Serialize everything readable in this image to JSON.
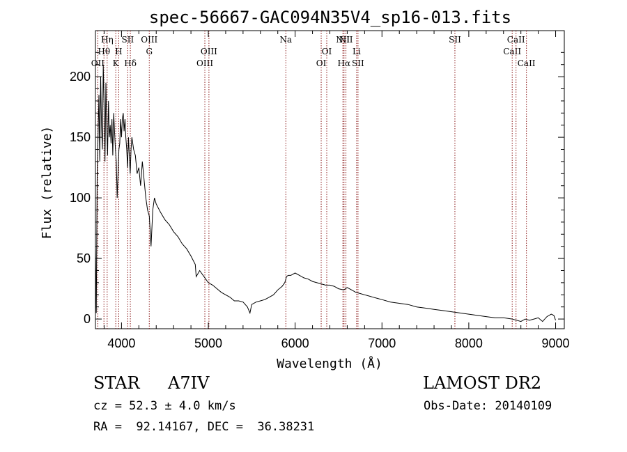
{
  "chart_data": {
    "type": "line",
    "title": "spec-56667-GAC094N35V4_sp16-013.fits",
    "xlabel": "Wavelength (Å)",
    "ylabel": "Flux (relative)",
    "xlim": [
      3700,
      9100
    ],
    "ylim": [
      -8,
      238
    ],
    "xticks": [
      4000,
      5000,
      6000,
      7000,
      8000,
      9000
    ],
    "yticks": [
      0,
      50,
      100,
      150,
      200
    ],
    "grid": false,
    "line_color": "#000000",
    "marker_color": "#8b1a1a",
    "series": [
      {
        "x": [
          3700,
          3710,
          3720,
          3730,
          3740,
          3750,
          3760,
          3770,
          3780,
          3790,
          3800,
          3810,
          3820,
          3830,
          3840,
          3850,
          3860,
          3870,
          3880,
          3890,
          3900,
          3910,
          3920,
          3930,
          3940,
          3950,
          3960,
          3970,
          3980,
          3990,
          4000,
          4010,
          4020,
          4030,
          4040,
          4050,
          4060,
          4070,
          4080,
          4090,
          4100,
          4110,
          4120,
          4140,
          4160,
          4180,
          4200,
          4220,
          4240,
          4260,
          4280,
          4300,
          4320,
          4340,
          4360,
          4380,
          4400,
          4450,
          4500,
          4550,
          4600,
          4650,
          4700,
          4750,
          4800,
          4850,
          4860,
          4900,
          4950,
          5000,
          5050,
          5100,
          5150,
          5200,
          5250,
          5300,
          5350,
          5400,
          5450,
          5480,
          5500,
          5550,
          5600,
          5650,
          5700,
          5750,
          5800,
          5850,
          5880,
          5890,
          5900,
          5920,
          5950,
          6000,
          6050,
          6100,
          6150,
          6200,
          6250,
          6300,
          6350,
          6400,
          6450,
          6500,
          6560,
          6600,
          6650,
          6700,
          6750,
          6800,
          6850,
          6900,
          6950,
          7000,
          7100,
          7200,
          7300,
          7400,
          7500,
          7600,
          7700,
          7800,
          7900,
          8000,
          8100,
          8200,
          8300,
          8400,
          8500,
          8550,
          8600,
          8650,
          8700,
          8750,
          8800,
          8850,
          8900,
          8950,
          8980,
          9000
        ],
        "y": [
          60,
          5,
          120,
          150,
          185,
          130,
          200,
          160,
          140,
          210,
          175,
          130,
          195,
          160,
          135,
          180,
          150,
          160,
          145,
          165,
          135,
          170,
          155,
          140,
          130,
          100,
          120,
          140,
          145,
          165,
          150,
          165,
          170,
          155,
          165,
          150,
          140,
          125,
          150,
          135,
          120,
          140,
          150,
          140,
          135,
          120,
          125,
          110,
          130,
          115,
          100,
          90,
          85,
          60,
          90,
          100,
          95,
          88,
          82,
          78,
          72,
          68,
          62,
          58,
          52,
          45,
          35,
          40,
          35,
          30,
          28,
          25,
          22,
          20,
          18,
          15,
          15,
          14,
          10,
          5,
          12,
          14,
          15,
          16,
          18,
          20,
          24,
          27,
          30,
          32,
          35,
          36,
          36,
          38,
          36,
          34,
          33,
          31,
          30,
          29,
          28,
          28,
          27,
          25,
          24,
          26,
          24,
          22,
          21,
          20,
          19,
          18,
          17,
          16,
          14,
          13,
          12,
          10,
          9,
          8,
          7,
          6,
          5,
          4,
          3,
          2,
          1,
          1,
          0,
          -1,
          -2,
          0,
          -1,
          0,
          1,
          -2,
          2,
          4,
          3,
          -1
        ]
      }
    ],
    "line_markers": [
      {
        "label": "OII",
        "x": 3727,
        "row": 3
      },
      {
        "label": "Hθ",
        "x": 3798,
        "row": 2
      },
      {
        "label": "Hη",
        "x": 3835,
        "row": 1
      },
      {
        "label": "K",
        "x": 3934,
        "row": 3
      },
      {
        "label": "H",
        "x": 3968,
        "row": 2
      },
      {
        "label": "SII",
        "x": 4072,
        "row": 1
      },
      {
        "label": "Hδ",
        "x": 4102,
        "row": 3
      },
      {
        "label": "OIII",
        "x": 4320,
        "row": 1
      },
      {
        "label": "G",
        "x": 4320,
        "row": 2
      },
      {
        "label": "OIII",
        "x": 4960,
        "row": 3
      },
      {
        "label": "OIII",
        "x": 5007,
        "row": 2
      },
      {
        "label": "Na",
        "x": 5893,
        "row": 1
      },
      {
        "label": "OI",
        "x": 6300,
        "row": 3
      },
      {
        "label": "OI",
        "x": 6364,
        "row": 2
      },
      {
        "label": "NII",
        "x": 6550,
        "row": 1
      },
      {
        "label": "NII",
        "x": 6585,
        "row": 1
      },
      {
        "label": "Hα",
        "x": 6563,
        "row": 3
      },
      {
        "label": "Li",
        "x": 6708,
        "row": 2
      },
      {
        "label": "SII",
        "x": 6724,
        "row": 3
      },
      {
        "label": "SII",
        "x": 7840,
        "row": 1
      },
      {
        "label": "CaII",
        "x": 8500,
        "row": 2
      },
      {
        "label": "CaII",
        "x": 8544,
        "row": 1
      },
      {
        "label": "CaII",
        "x": 8664,
        "row": 3
      }
    ]
  },
  "info": {
    "star_class": "STAR",
    "star_type": "A7IV",
    "survey": "LAMOST DR2",
    "cz": "cz = 52.3 ± 4.0 km/s",
    "obs_date": "Obs-Date: 20140109",
    "radec": "RA =  92.14167, DEC =  36.38231"
  }
}
